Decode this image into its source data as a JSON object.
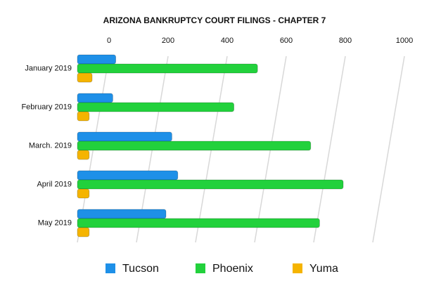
{
  "chart_data": {
    "type": "bar",
    "orientation": "horizontal",
    "title": "ARIZONA BANKRUPTCY COURT FILINGS - CHAPTER 7",
    "categories": [
      "January 2019",
      "February 2019",
      "March. 2019",
      "April 2019",
      "May 2019"
    ],
    "series": [
      {
        "name": "Tucson",
        "color": "#1e90e8",
        "values": [
          130,
          120,
          320,
          340,
          300
        ]
      },
      {
        "name": "Phoenix",
        "color": "#22d13c",
        "values": [
          610,
          530,
          790,
          900,
          820
        ]
      },
      {
        "name": "Yuma",
        "color": "#f5b400",
        "values": [
          50,
          40,
          40,
          40,
          40
        ]
      }
    ],
    "xlim": [
      0,
      1000
    ],
    "xticks": [
      0,
      200,
      400,
      600,
      800,
      1000
    ],
    "grid": true,
    "legend": "bottom"
  }
}
